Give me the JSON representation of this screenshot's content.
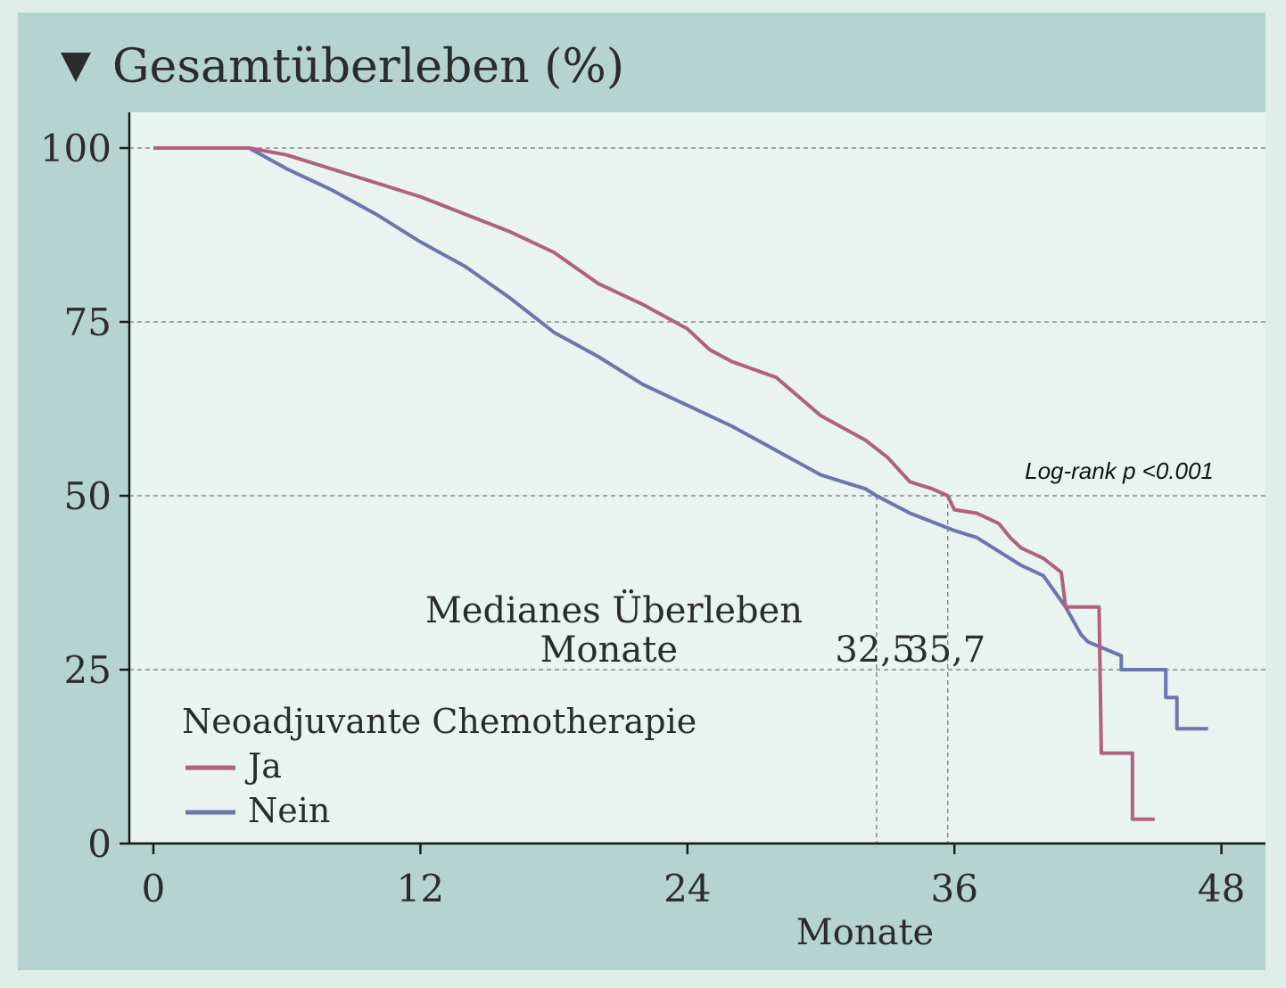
{
  "chart_data": {
    "type": "line",
    "step": true,
    "title": "Gesamtüberleben (%)",
    "xlabel": "Monate",
    "ylabel": "",
    "xlim": [
      -1,
      49.5
    ],
    "ylim": [
      0,
      100
    ],
    "xticks": [
      0,
      12,
      24,
      36,
      48
    ],
    "yticks": [
      0,
      25,
      50,
      75,
      100
    ],
    "xtick_labels": [
      "0",
      "12",
      "24",
      "36",
      "48"
    ],
    "ytick_labels": [
      "0",
      "25",
      "50",
      "75",
      "100"
    ],
    "grid": "horizontal dashed",
    "legend": {
      "title": "Neoadjuvante Chemotherapie",
      "position": "bottom-left"
    },
    "annotation": "Log-rank p <0.001",
    "median_label": [
      "Medianes Überleben",
      "Monate"
    ],
    "medians": [
      {
        "value": 32.5,
        "label": "32,5",
        "series": "Nein"
      },
      {
        "value": 35.7,
        "label": "35,7",
        "series": "Ja"
      }
    ],
    "series": [
      {
        "name": "Ja",
        "color": "#b06080",
        "points": [
          [
            0,
            100
          ],
          [
            4.3,
            100
          ],
          [
            6,
            99
          ],
          [
            8,
            97
          ],
          [
            10,
            95
          ],
          [
            12,
            93
          ],
          [
            14,
            90.5
          ],
          [
            16,
            88
          ],
          [
            18,
            85
          ],
          [
            20,
            80.5
          ],
          [
            22,
            77.5
          ],
          [
            24,
            74
          ],
          [
            25,
            71
          ],
          [
            26,
            69.3
          ],
          [
            28,
            67
          ],
          [
            30,
            61.5
          ],
          [
            32,
            58
          ],
          [
            33,
            55.5
          ],
          [
            34,
            52
          ],
          [
            35,
            51
          ],
          [
            35.7,
            50
          ],
          [
            36,
            48
          ],
          [
            37,
            47.5
          ],
          [
            38,
            46
          ],
          [
            38.5,
            44
          ],
          [
            39,
            42.5
          ],
          [
            40,
            41
          ],
          [
            40.8,
            39
          ],
          [
            41,
            34
          ],
          [
            42.5,
            34
          ],
          [
            42.6,
            13
          ],
          [
            44,
            13
          ],
          [
            44,
            3.5
          ],
          [
            45,
            3.5
          ]
        ]
      },
      {
        "name": "Nein",
        "color": "#6a76ad",
        "points": [
          [
            0,
            100
          ],
          [
            4.3,
            100
          ],
          [
            6,
            97
          ],
          [
            8,
            94
          ],
          [
            10,
            90.5
          ],
          [
            12,
            86.5
          ],
          [
            14,
            83
          ],
          [
            16,
            78.5
          ],
          [
            18,
            73.5
          ],
          [
            20,
            70
          ],
          [
            22,
            66
          ],
          [
            24,
            63
          ],
          [
            26,
            60
          ],
          [
            28,
            56.5
          ],
          [
            30,
            53
          ],
          [
            32,
            51
          ],
          [
            32.5,
            50
          ],
          [
            34,
            47.5
          ],
          [
            36,
            45
          ],
          [
            37,
            44
          ],
          [
            38,
            42
          ],
          [
            39,
            40
          ],
          [
            40,
            38.5
          ],
          [
            41,
            34
          ],
          [
            41.7,
            30
          ],
          [
            42,
            29
          ],
          [
            43.5,
            27
          ],
          [
            43.5,
            25
          ],
          [
            45.5,
            25
          ],
          [
            45.5,
            21
          ],
          [
            46,
            21
          ],
          [
            46,
            16.5
          ],
          [
            47.4,
            16.5
          ]
        ]
      }
    ]
  }
}
